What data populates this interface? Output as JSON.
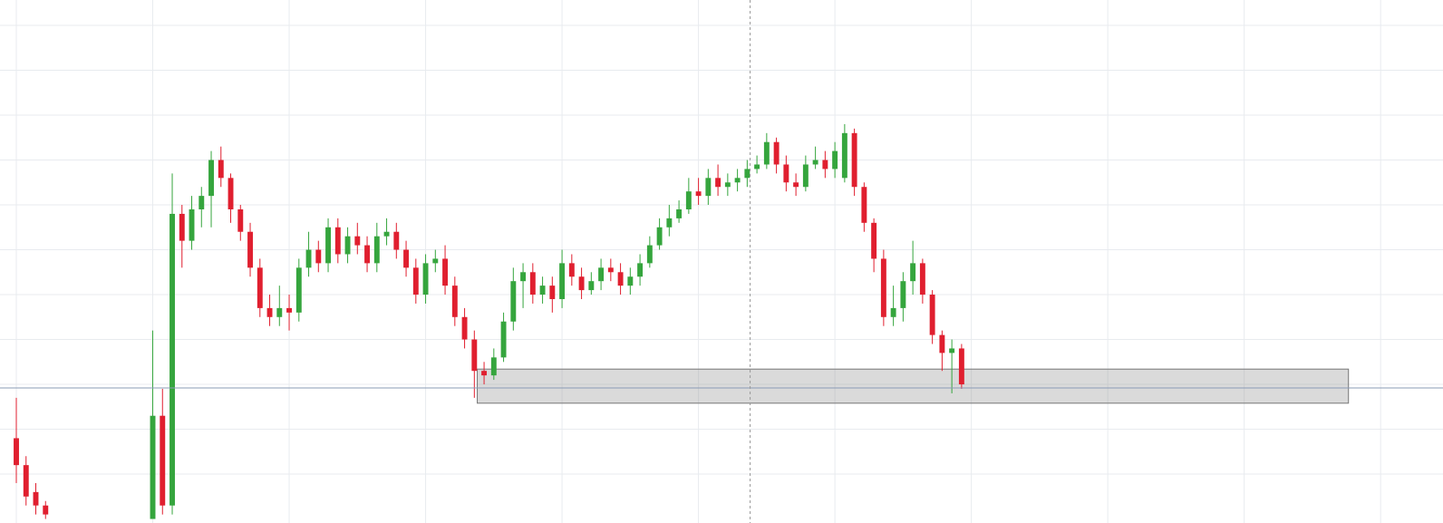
{
  "chart_data": {
    "type": "candlestick",
    "x": [
      0,
      1,
      2,
      3,
      14,
      15,
      16,
      17,
      18,
      19,
      20,
      21,
      22,
      23,
      24,
      25,
      26,
      27,
      28,
      29,
      30,
      31,
      32,
      33,
      34,
      35,
      36,
      37,
      38,
      39,
      40,
      41,
      42,
      43,
      44,
      45,
      46,
      47,
      48,
      49,
      50,
      51,
      52,
      53,
      54,
      55,
      56,
      57,
      58,
      59,
      60,
      61,
      62,
      63,
      64,
      65,
      66,
      67,
      68,
      69,
      70,
      71,
      72,
      73,
      74,
      75,
      76,
      77,
      78,
      79,
      80,
      81,
      82,
      83,
      84,
      85,
      86,
      87,
      88,
      89,
      90,
      91,
      92,
      93,
      94,
      95,
      96,
      97
    ],
    "open": [
      18,
      12,
      6,
      3,
      0,
      23,
      3,
      68,
      62,
      69,
      72,
      80,
      76,
      69,
      64,
      56,
      47,
      45,
      47,
      46,
      56,
      60,
      57,
      65,
      59,
      63,
      61,
      57,
      63,
      64,
      60,
      56,
      50,
      57,
      58,
      52,
      45,
      40,
      33,
      32,
      36,
      44,
      53,
      55,
      50,
      52,
      49,
      57,
      54,
      51,
      53,
      56,
      55,
      52,
      54,
      57,
      61,
      65,
      67,
      69,
      73,
      72,
      76,
      74,
      75,
      76,
      78,
      79,
      84,
      79,
      75,
      74,
      79,
      80,
      78,
      76,
      86,
      74,
      66,
      58,
      45,
      47,
      53,
      57,
      50,
      41,
      37,
      38
    ],
    "high": [
      27,
      14,
      8,
      4,
      42,
      29,
      77,
      70,
      72,
      74,
      82,
      83,
      77,
      70,
      66,
      58,
      50,
      52,
      50,
      58,
      64,
      62,
      67,
      67,
      65,
      66,
      63,
      66,
      67,
      66,
      62,
      58,
      59,
      60,
      61,
      54,
      47,
      42,
      35,
      38,
      46,
      56,
      57,
      57,
      54,
      54,
      60,
      59,
      56,
      55,
      58,
      58,
      57,
      56,
      59,
      63,
      67,
      70,
      71,
      76,
      76,
      78,
      79,
      77,
      78,
      80,
      81,
      86,
      85,
      81,
      77,
      81,
      83,
      82,
      84,
      88,
      87,
      75,
      67,
      60,
      52,
      55,
      62,
      58,
      51,
      42,
      40,
      39
    ],
    "low": [
      8,
      3,
      1,
      0,
      0,
      1,
      1,
      56,
      60,
      65,
      65,
      74,
      66,
      62,
      54,
      45,
      43,
      43,
      42,
      44,
      54,
      55,
      55,
      57,
      57,
      59,
      55,
      55,
      61,
      58,
      54,
      48,
      48,
      55,
      50,
      43,
      38,
      27,
      30,
      31,
      35,
      42,
      47,
      48,
      48,
      46,
      47,
      52,
      49,
      50,
      51,
      53,
      50,
      50,
      52,
      56,
      60,
      63,
      66,
      68,
      70,
      70,
      72,
      72,
      73,
      74,
      77,
      78,
      77,
      73,
      72,
      73,
      78,
      76,
      76,
      75,
      72,
      64,
      55,
      43,
      43,
      44,
      50,
      48,
      39,
      33,
      28,
      29
    ],
    "close": [
      12,
      5,
      3,
      1,
      23,
      3,
      68,
      62,
      69,
      72,
      80,
      76,
      69,
      64,
      56,
      47,
      45,
      47,
      46,
      56,
      60,
      57,
      65,
      59,
      63,
      61,
      57,
      63,
      64,
      60,
      56,
      50,
      57,
      58,
      52,
      45,
      40,
      33,
      32,
      36,
      44,
      53,
      55,
      50,
      52,
      49,
      57,
      54,
      51,
      53,
      56,
      55,
      52,
      54,
      57,
      61,
      65,
      67,
      69,
      73,
      72,
      76,
      74,
      75,
      76,
      78,
      79,
      84,
      79,
      75,
      74,
      79,
      80,
      78,
      82,
      86,
      74,
      66,
      58,
      45,
      47,
      53,
      57,
      50,
      41,
      37,
      38,
      30
    ],
    "up_color": "#35a53d",
    "down_color": "#e01f2f",
    "xlim": [
      -1.674,
      146.4
    ],
    "ylim": [
      -0.9,
      115.66
    ],
    "xticks": [
      0,
      14,
      28,
      42,
      56,
      70,
      84,
      98,
      112,
      126,
      140
    ],
    "yticks": [
      10,
      20,
      30,
      40,
      50,
      60,
      70,
      80,
      90,
      100,
      110
    ],
    "grid": true,
    "price_line": 29.2,
    "crosshair_x": 75.3,
    "zone": {
      "x": [
        47.3,
        136.7
      ],
      "y": [
        25.8,
        33.4
      ]
    }
  }
}
